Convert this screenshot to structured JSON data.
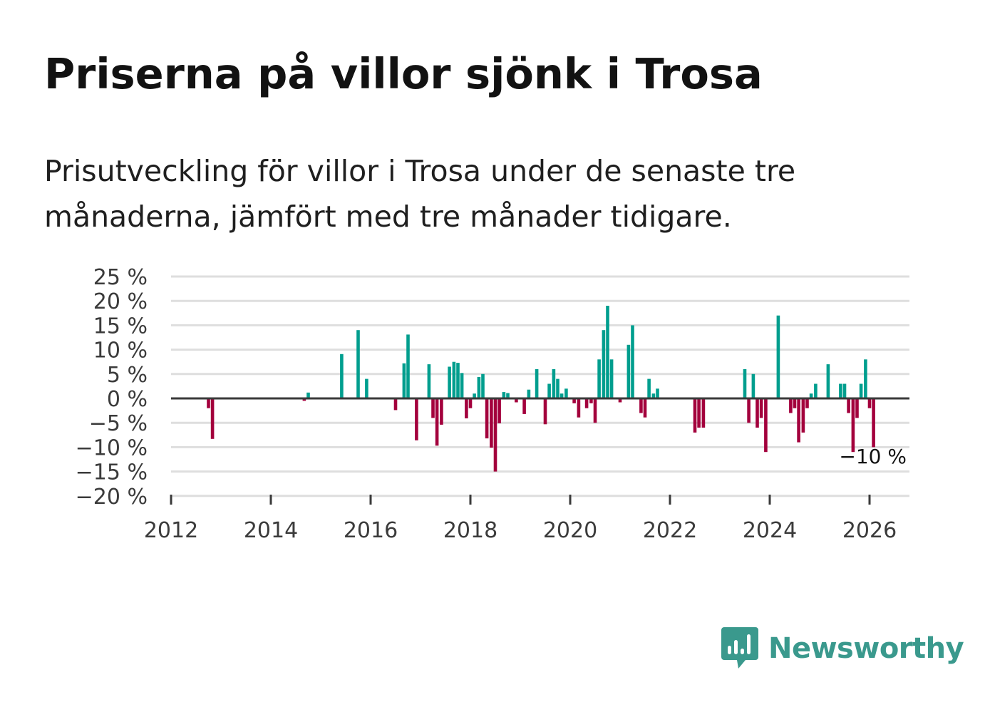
{
  "title": "Priserna på villor sjönk i Trosa",
  "subtitle": "Prisutveckling för villor i Trosa under de senaste tre månaderna, jämfört med tre månader tidigare.",
  "brand": {
    "name": "Newsworthy",
    "icon": "newsworthy-logo-icon"
  },
  "colors": {
    "positive": "#009e8e",
    "negative": "#a3003c",
    "grid": "#dedede",
    "zero_line": "#3a3a3a",
    "brand": "#3a998d"
  },
  "chart_data": {
    "type": "bar",
    "title": "Priserna på villor sjönk i Trosa",
    "xlabel": "",
    "ylabel": "",
    "x_ticks": [
      2012,
      2014,
      2016,
      2018,
      2020,
      2022,
      2024,
      2026
    ],
    "x_tick_labels": [
      "2012",
      "2014",
      "2016",
      "2018",
      "2020",
      "2022",
      "2024",
      "2026"
    ],
    "y_ticks": [
      25,
      20,
      15,
      10,
      5,
      0,
      -5,
      -10,
      -15,
      -20
    ],
    "y_tick_labels": [
      "25 %",
      "20 %",
      "15 %",
      "10 %",
      "5 %",
      "0 %",
      "−5 %",
      "−10 %",
      "−15 %",
      "−20 %"
    ],
    "xlim": [
      2012,
      2026.8
    ],
    "ylim": [
      -20,
      25
    ],
    "grid": true,
    "annotation": {
      "text": "−10 %",
      "x": 2026.08,
      "y": -10
    },
    "series": [
      {
        "name": "Prisutveckling",
        "x": [
          2012.75,
          2012.83,
          2014.67,
          2014.75,
          2015.42,
          2015.75,
          2015.92,
          2016.5,
          2016.67,
          2016.75,
          2016.92,
          2017.17,
          2017.25,
          2017.33,
          2017.42,
          2017.58,
          2017.67,
          2017.75,
          2017.83,
          2017.92,
          2018.0,
          2018.08,
          2018.17,
          2018.25,
          2018.33,
          2018.42,
          2018.5,
          2018.58,
          2018.67,
          2018.75,
          2018.92,
          2019.08,
          2019.17,
          2019.33,
          2019.5,
          2019.58,
          2019.67,
          2019.75,
          2019.83,
          2019.92,
          2020.08,
          2020.17,
          2020.33,
          2020.42,
          2020.5,
          2020.58,
          2020.67,
          2020.75,
          2020.83,
          2021.0,
          2021.17,
          2021.25,
          2021.42,
          2021.5,
          2021.58,
          2021.67,
          2021.75,
          2022.5,
          2022.58,
          2022.67,
          2023.5,
          2023.58,
          2023.67,
          2023.75,
          2023.83,
          2023.92,
          2024.17,
          2024.42,
          2024.5,
          2024.58,
          2024.67,
          2024.75,
          2024.83,
          2024.92,
          2025.17,
          2025.42,
          2025.5,
          2025.58,
          2025.67,
          2025.75,
          2025.83,
          2025.92,
          2026.0,
          2026.08
        ],
        "values": [
          -2,
          -8.3,
          -0.5,
          1.2,
          9.1,
          14,
          4,
          -2.4,
          7.2,
          13.1,
          -8.6,
          7,
          -4,
          -9.7,
          -5.4,
          6.5,
          7.5,
          7.3,
          5.2,
          -4.1,
          -2,
          1,
          4.4,
          5,
          -8.2,
          -10.1,
          -15,
          -5.1,
          1.3,
          1.1,
          -0.8,
          -3.2,
          1.8,
          6,
          -5.3,
          3,
          6,
          4,
          1,
          2,
          -1,
          -3.9,
          -2,
          -1,
          -5,
          8,
          14,
          19,
          8,
          -0.8,
          11,
          15,
          -3,
          -3.9,
          4,
          1,
          2,
          -7,
          -6,
          -6,
          6,
          -5,
          5,
          -6,
          -4,
          -11,
          17,
          -3,
          -2,
          -9,
          -7,
          -2,
          1,
          3,
          7,
          3,
          3,
          -3,
          -11,
          -4,
          3,
          8,
          -2,
          -10
        ]
      }
    ]
  }
}
